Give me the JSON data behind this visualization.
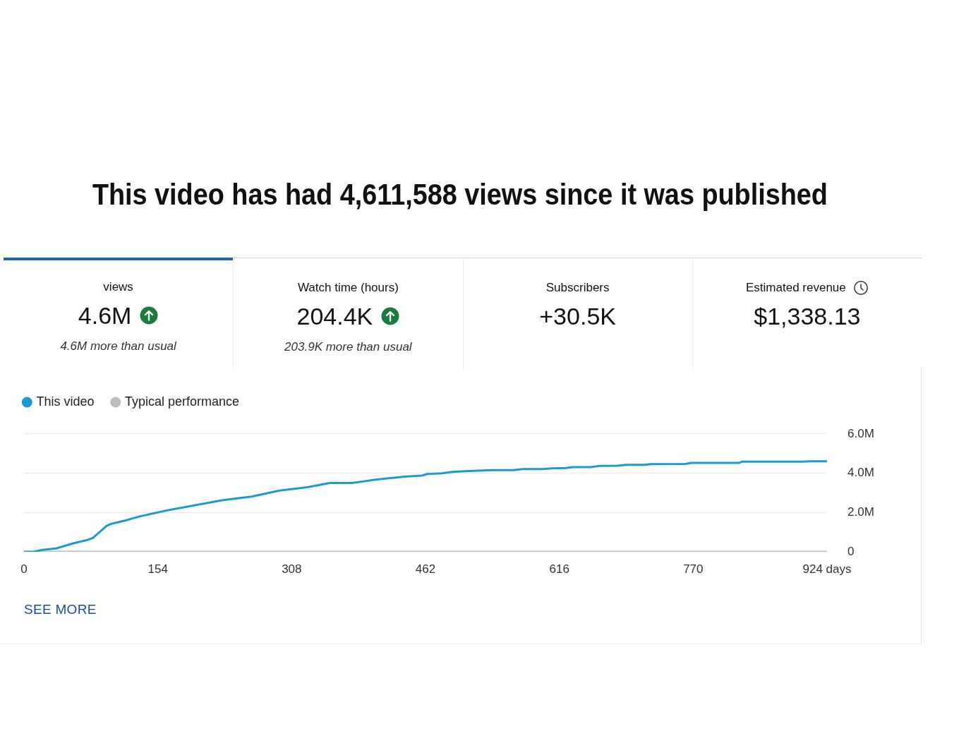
{
  "chart_data": [
    {
      "type": "other",
      "title": "This video has had 4,611,588 views since it was published"
    },
    {
      "type": "other",
      "title": "views",
      "annotations": [
        "4.6M",
        "4.6M more than usual"
      ]
    },
    {
      "type": "other",
      "title": "Watch time (hours)",
      "annotations": [
        "204.4K",
        "203.9K more than usual"
      ]
    },
    {
      "type": "other",
      "title": "Subscribers",
      "annotations": [
        "+30.5K"
      ]
    },
    {
      "type": "other",
      "title": "Estimated revenue",
      "annotations": [
        "$1,338.13"
      ]
    },
    {
      "type": "line",
      "x": [
        0,
        11,
        20,
        37,
        56,
        72,
        79,
        95,
        101,
        117,
        133,
        165,
        197,
        229,
        262,
        294,
        326,
        352,
        377,
        406,
        438,
        458,
        464,
        481,
        493,
        512,
        539,
        563,
        574,
        597,
        608,
        624,
        631,
        652,
        662,
        683,
        693,
        714,
        721,
        761,
        768,
        823,
        826,
        895,
        905,
        924
      ],
      "series": [
        {
          "name": "This video",
          "color": "#1c9bd1",
          "values": [
            0,
            0,
            90000,
            170000,
            420000,
            590000,
            700000,
            1320000,
            1430000,
            1600000,
            1800000,
            2110000,
            2370000,
            2630000,
            2810000,
            3120000,
            3290000,
            3500000,
            3500000,
            3680000,
            3830000,
            3880000,
            3960000,
            4000000,
            4070000,
            4110000,
            4160000,
            4160000,
            4210000,
            4210000,
            4250000,
            4270000,
            4310000,
            4310000,
            4370000,
            4380000,
            4430000,
            4430000,
            4460000,
            4470000,
            4530000,
            4530000,
            4590000,
            4590000,
            4610000,
            4610000
          ]
        },
        {
          "name": "Typical performance",
          "color": "#bdbdbd",
          "x": [
            0,
            924
          ],
          "values": [
            0,
            0
          ]
        }
      ],
      "xlim": [
        0,
        924
      ],
      "xticks": [
        0,
        154,
        308,
        462,
        616,
        770,
        {
          "value": 924,
          "label": "924 days"
        }
      ],
      "ylim": [
        0,
        6000000
      ],
      "yticks": [
        0,
        {
          "value": 2000000,
          "label": "2.0M"
        },
        {
          "value": 4000000,
          "label": "4.0M"
        },
        {
          "value": 6000000,
          "label": "6.0M"
        }
      ],
      "grid": "y",
      "legend": "top left",
      "annotations": [
        "SEE MORE"
      ]
    }
  ]
}
